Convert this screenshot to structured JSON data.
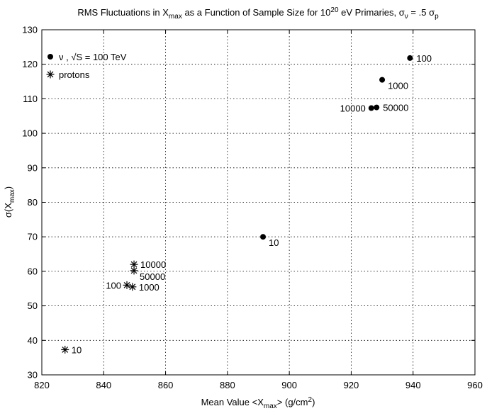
{
  "chart_data": {
    "type": "scatter",
    "title": {
      "parts": [
        {
          "text": "RMS  Fluctuations  in  X",
          "style": "normal"
        },
        {
          "text": "max",
          "style": "sub"
        },
        {
          "text": "  as  a  Function  of  Sample  Size  for  10",
          "style": "normal"
        },
        {
          "text": "20",
          "style": "sup"
        },
        {
          "text": " eV  Primaries, ",
          "style": "normal"
        },
        {
          "text": "σ",
          "style": "normal"
        },
        {
          "text": "ν",
          "style": "sub"
        },
        {
          "text": " = .5 ",
          "style": "normal"
        },
        {
          "text": "σ",
          "style": "normal"
        },
        {
          "text": "p",
          "style": "sub"
        }
      ]
    },
    "xlabel": {
      "parts": [
        {
          "text": "Mean Value  <X",
          "style": "normal"
        },
        {
          "text": "max",
          "style": "sub"
        },
        {
          "text": ">   (g/cm",
          "style": "normal"
        },
        {
          "text": "2",
          "style": "sup"
        },
        {
          "text": ")",
          "style": "normal"
        }
      ]
    },
    "ylabel": {
      "parts": [
        {
          "text": "σ(X",
          "style": "normal"
        },
        {
          "text": "max",
          "style": "sub"
        },
        {
          "text": ")",
          "style": "normal"
        }
      ]
    },
    "xlim": [
      820,
      960
    ],
    "ylim": [
      30,
      130
    ],
    "xticks": [
      820,
      840,
      860,
      880,
      900,
      920,
      940,
      960
    ],
    "yticks": [
      30,
      40,
      50,
      60,
      70,
      80,
      90,
      100,
      110,
      120,
      130
    ],
    "grid": true,
    "legend": {
      "placement": "top-left",
      "entries": [
        {
          "marker": "dot",
          "parts": [
            {
              "text": "ν",
              "style": "normal"
            },
            {
              "text": " , √S =  100 TeV",
              "style": "normal"
            }
          ]
        },
        {
          "marker": "star",
          "parts": [
            {
              "text": "protons",
              "style": "normal"
            }
          ]
        }
      ]
    },
    "series": [
      {
        "marker": "dot",
        "points": [
          {
            "x": 891.5,
            "y": 70.0,
            "label": "10",
            "label_side": "right-below"
          },
          {
            "x": 939.0,
            "y": 121.8,
            "label": "100",
            "label_side": "right"
          },
          {
            "x": 930.0,
            "y": 115.5,
            "label": "1000",
            "label_side": "right-below"
          },
          {
            "x": 926.5,
            "y": 107.3,
            "label": "10000",
            "label_side": "left"
          },
          {
            "x": 928.2,
            "y": 107.5,
            "label": "50000",
            "label_side": "right"
          }
        ]
      },
      {
        "marker": "star",
        "points": [
          {
            "x": 827.5,
            "y": 37.3,
            "label": "10",
            "label_side": "right"
          },
          {
            "x": 847.5,
            "y": 56.0,
            "label": "100",
            "label_side": "left"
          },
          {
            "x": 849.3,
            "y": 55.5,
            "label": "1000",
            "label_side": "right"
          },
          {
            "x": 849.8,
            "y": 62.0,
            "label": "10000",
            "label_side": "right"
          },
          {
            "x": 849.8,
            "y": 60.2,
            "label": "50000",
            "label_side": "right-below"
          }
        ]
      }
    ]
  }
}
